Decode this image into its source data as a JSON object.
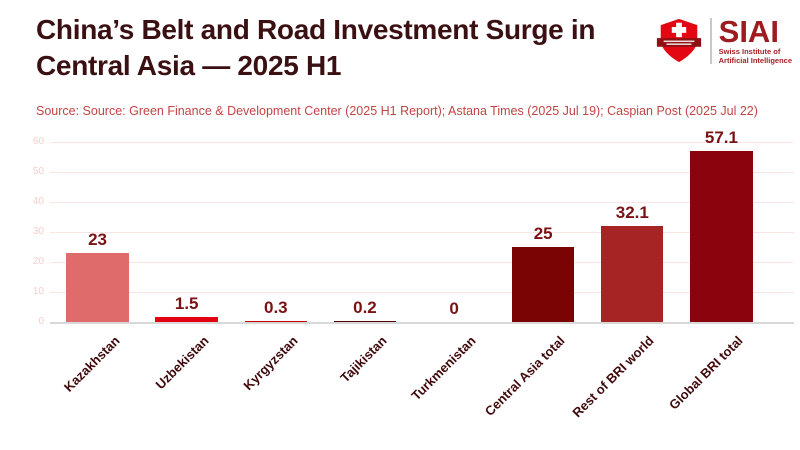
{
  "header": {
    "title_line1": "China’s Belt and Road Investment Surge in",
    "title_line2": "Central Asia — 2025 H1",
    "source": "Source: Source: Green Finance & Development Center (2025 H1 Report); Astana Times (2025 Jul 19); Caspian Post (2025 Jul 22)"
  },
  "logo": {
    "wordmark": "SIAI",
    "tagline_line1": "Swiss Institute of",
    "tagline_line2": "Artificial Intelligence"
  },
  "chart_data": {
    "type": "bar",
    "title": "China’s Belt and Road Investment Surge in Central Asia — 2025 H1",
    "categories": [
      "Kazakhstan",
      "Uzbekistan",
      "Kyrgyzstan",
      "Tajikistan",
      "Turkmenistan",
      "Central Asia total",
      "Rest of BRI world",
      "Global BRI total"
    ],
    "values": [
      23,
      1.5,
      0.3,
      0.2,
      0,
      25,
      32.1,
      57.1
    ],
    "value_labels": [
      "23",
      "1.5",
      "0.3",
      "0.2",
      "0",
      "25",
      "32.1",
      "57.1"
    ],
    "bar_colors": [
      "#df6b6b",
      "#e30011",
      "#c00000",
      "#500005",
      "#8b0000",
      "#7a0303",
      "#a72424",
      "#8b030c"
    ],
    "xlabel": "",
    "ylabel": "",
    "ylim": [
      0,
      60
    ],
    "yticks": [
      0,
      10,
      20,
      30,
      40,
      50,
      60
    ],
    "grid": true,
    "legend": false
  },
  "theme": {
    "background": "#ffffff",
    "title_color": "#3a1012",
    "source_color": "#c24444",
    "value_label_color": "#7a1214",
    "category_label_color": "#410a0c",
    "tick_label_color": "#f8cdcd",
    "gridline_color": "#fae4e4",
    "axis_line_color": "#d8d8d8",
    "logo_wordmark_color": "#9e1b20",
    "logo_tagline_color": "#a62226",
    "logo_shield_red": "#e30613",
    "logo_banner_color": "#8f0f13",
    "logo_divider_color": "#c9c9c9"
  }
}
